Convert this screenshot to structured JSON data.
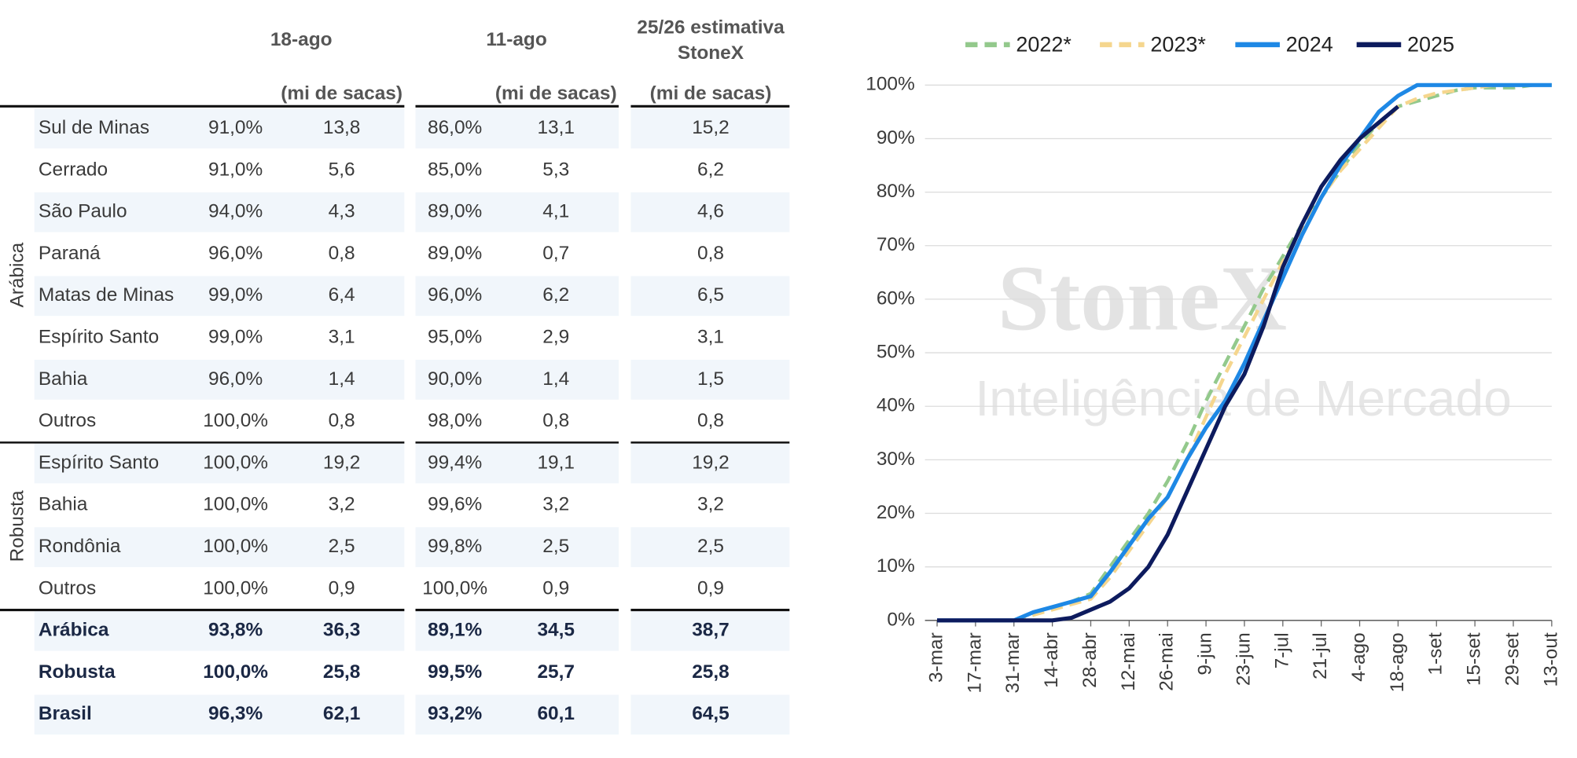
{
  "table": {
    "columns": [
      {
        "title": [
          "18-ago"
        ],
        "unit": "(mi de sacas)"
      },
      {
        "title": [
          "11-ago"
        ],
        "unit": "(mi de sacas)"
      },
      {
        "title": [
          "25/26 estimativa",
          "StoneX"
        ],
        "unit": "(mi de sacas)"
      }
    ],
    "groups": [
      {
        "name": "Arábica",
        "rows": [
          [
            "Sul de Minas",
            "91,0%",
            "13,8",
            "86,0%",
            "13,1",
            "15,2"
          ],
          [
            "Cerrado",
            "91,0%",
            "5,6",
            "85,0%",
            "5,3",
            "6,2"
          ],
          [
            "São Paulo",
            "94,0%",
            "4,3",
            "89,0%",
            "4,1",
            "4,6"
          ],
          [
            "Paraná",
            "96,0%",
            "0,8",
            "89,0%",
            "0,7",
            "0,8"
          ],
          [
            "Matas de Minas",
            "99,0%",
            "6,4",
            "96,0%",
            "6,2",
            "6,5"
          ],
          [
            "Espírito Santo",
            "99,0%",
            "3,1",
            "95,0%",
            "2,9",
            "3,1"
          ],
          [
            "Bahia",
            "96,0%",
            "1,4",
            "90,0%",
            "1,4",
            "1,5"
          ],
          [
            "Outros",
            "100,0%",
            "0,8",
            "98,0%",
            "0,8",
            "0,8"
          ]
        ]
      },
      {
        "name": "Robusta",
        "rows": [
          [
            "Espírito Santo",
            "100,0%",
            "19,2",
            "99,4%",
            "19,1",
            "19,2"
          ],
          [
            "Bahia",
            "100,0%",
            "3,2",
            "99,6%",
            "3,2",
            "3,2"
          ],
          [
            "Rondônia",
            "100,0%",
            "2,5",
            "99,8%",
            "2,5",
            "2,5"
          ],
          [
            "Outros",
            "100,0%",
            "0,9",
            "100,0%",
            "0,9",
            "0,9"
          ]
        ]
      }
    ],
    "totals": [
      [
        "Arábica",
        "93,8%",
        "36,3",
        "89,1%",
        "34,5",
        "38,7"
      ],
      [
        "Robusta",
        "100,0%",
        "25,8",
        "99,5%",
        "25,7",
        "25,8"
      ],
      [
        "Brasil",
        "96,3%",
        "62,1",
        "93,2%",
        "60,1",
        "64,5"
      ]
    ]
  },
  "chart_data": {
    "type": "line",
    "watermark": [
      "StoneX",
      "Inteligência de Mercado"
    ],
    "categories": [
      "3-mar",
      null,
      "17-mar",
      null,
      "31-mar",
      null,
      "14-abr",
      null,
      "28-abr",
      null,
      "12-mai",
      null,
      "26-mai",
      null,
      "9-jun",
      null,
      "23-jun",
      null,
      "7-jul",
      null,
      "21-jul",
      null,
      "4-ago",
      null,
      "18-ago",
      null,
      "1-set",
      null,
      "15-set",
      null,
      "29-set",
      null,
      "13-out"
    ],
    "ylim": [
      0,
      100
    ],
    "yticks": [
      {
        "value": 0,
        "label": "0%"
      },
      {
        "value": 10,
        "label": "10%"
      },
      {
        "value": 20,
        "label": "20%"
      },
      {
        "value": 30,
        "label": "30%"
      },
      {
        "value": 40,
        "label": "40%"
      },
      {
        "value": 50,
        "label": "50%"
      },
      {
        "value": 60,
        "label": "60%"
      },
      {
        "value": 70,
        "label": "70%"
      },
      {
        "value": 80,
        "label": "80%"
      },
      {
        "value": 90,
        "label": "90%"
      },
      {
        "value": 100,
        "label": "100%"
      }
    ],
    "grid": true,
    "legend": "top",
    "series": [
      {
        "name": "2022*",
        "color": "#93c98c",
        "dashed": true,
        "values": [
          0,
          0,
          0,
          0,
          0,
          1,
          2.5,
          3.5,
          5,
          10,
          15,
          20,
          26,
          33,
          41,
          48,
          55,
          62,
          68,
          74,
          79,
          84,
          89,
          93,
          96,
          97,
          98,
          99,
          99.5,
          99.5,
          99.5,
          100,
          100
        ]
      },
      {
        "name": "2023*",
        "color": "#f5d68e",
        "dashed": true,
        "values": [
          0,
          0,
          0,
          0,
          0,
          1,
          2,
          3,
          4,
          8,
          13,
          18,
          23,
          30,
          38,
          46,
          53,
          60,
          67,
          73,
          79,
          84,
          88,
          92,
          96,
          97.5,
          98.5,
          99,
          99.5,
          100,
          100,
          100,
          100
        ]
      },
      {
        "name": "2024",
        "color": "#1e88e5",
        "dashed": false,
        "values": [
          0,
          0,
          0,
          0,
          0,
          1.5,
          2.5,
          3.5,
          4.5,
          9,
          14,
          19,
          23,
          30,
          36,
          41,
          48,
          56,
          64,
          72,
          79,
          85,
          90,
          95,
          98,
          100,
          100,
          100,
          100,
          100,
          100,
          100,
          100
        ]
      },
      {
        "name": "2025",
        "color": "#0d1b5e",
        "dashed": false,
        "values": [
          0,
          0,
          0,
          0,
          0,
          0,
          0,
          0.5,
          2,
          3.5,
          6,
          10,
          16,
          24,
          32,
          40,
          46,
          55,
          66,
          74,
          81,
          86,
          90,
          93,
          96,
          null,
          null,
          null,
          null,
          null,
          null,
          null,
          null
        ]
      }
    ]
  }
}
